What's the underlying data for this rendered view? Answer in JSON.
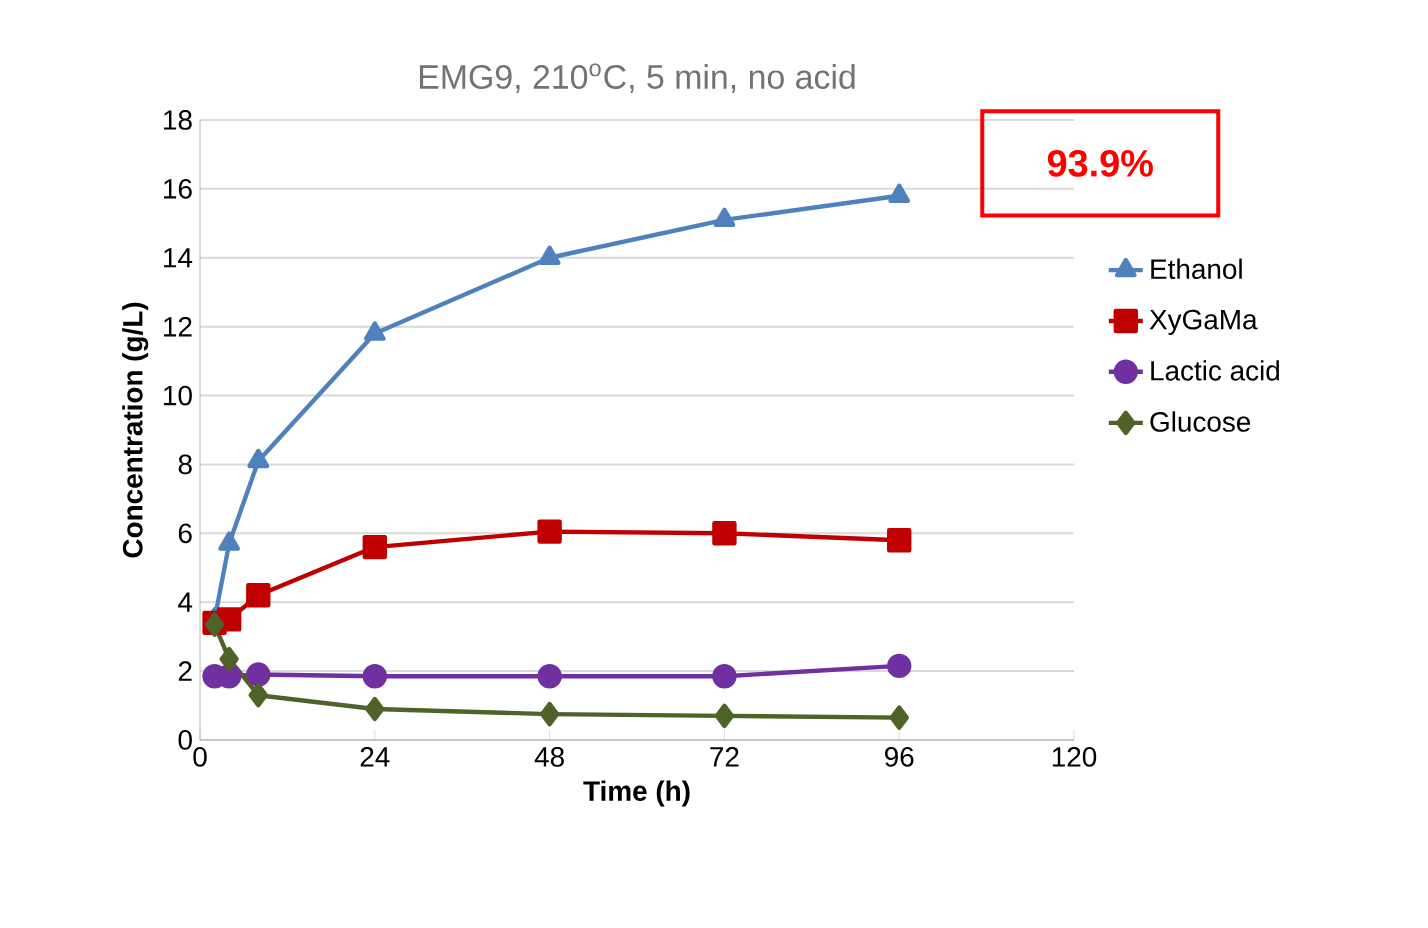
{
  "chart_data": {
    "type": "line",
    "title": "EMG9, 210$^{o}$C, 5 min, no acid",
    "xlabel": "Time (h)",
    "ylabel": "Concentration (g/L)",
    "xlim": [
      0,
      120
    ],
    "xticks": [
      0,
      24,
      48,
      72,
      96,
      120
    ],
    "ylim": [
      0,
      18
    ],
    "yticks": [
      0,
      2,
      4,
      6,
      8,
      10,
      12,
      14,
      16,
      18
    ],
    "grid": "y",
    "legend": "right",
    "line_style": "solid",
    "annotations": [
      "93.9%"
    ],
    "series": [
      {
        "name": "Ethanol",
        "color": "#4f81bd",
        "marker": "triangle",
        "x": [
          2,
          4,
          8,
          24,
          48,
          72,
          96
        ],
        "values": [
          3.5,
          5.7,
          8.1,
          11.8,
          14.0,
          15.1,
          15.8
        ]
      },
      {
        "name": "XyGaMa",
        "color": "#c00000",
        "marker": "square",
        "x": [
          2,
          4,
          8,
          24,
          48,
          72,
          96
        ],
        "values": [
          3.4,
          3.5,
          4.2,
          5.6,
          6.05,
          6.0,
          5.8
        ]
      },
      {
        "name": "Lactic acid",
        "color": "#7030a0",
        "marker": "circle",
        "x": [
          2,
          4,
          8,
          24,
          48,
          72,
          96
        ],
        "values": [
          1.85,
          1.85,
          1.9,
          1.85,
          1.85,
          1.85,
          2.15
        ]
      },
      {
        "name": "Glucose",
        "color": "#4f6228",
        "marker": "diamond",
        "x": [
          2,
          4,
          8,
          24,
          48,
          72,
          96
        ],
        "values": [
          3.35,
          2.35,
          1.3,
          0.9,
          0.75,
          0.7,
          0.65
        ]
      }
    ]
  }
}
